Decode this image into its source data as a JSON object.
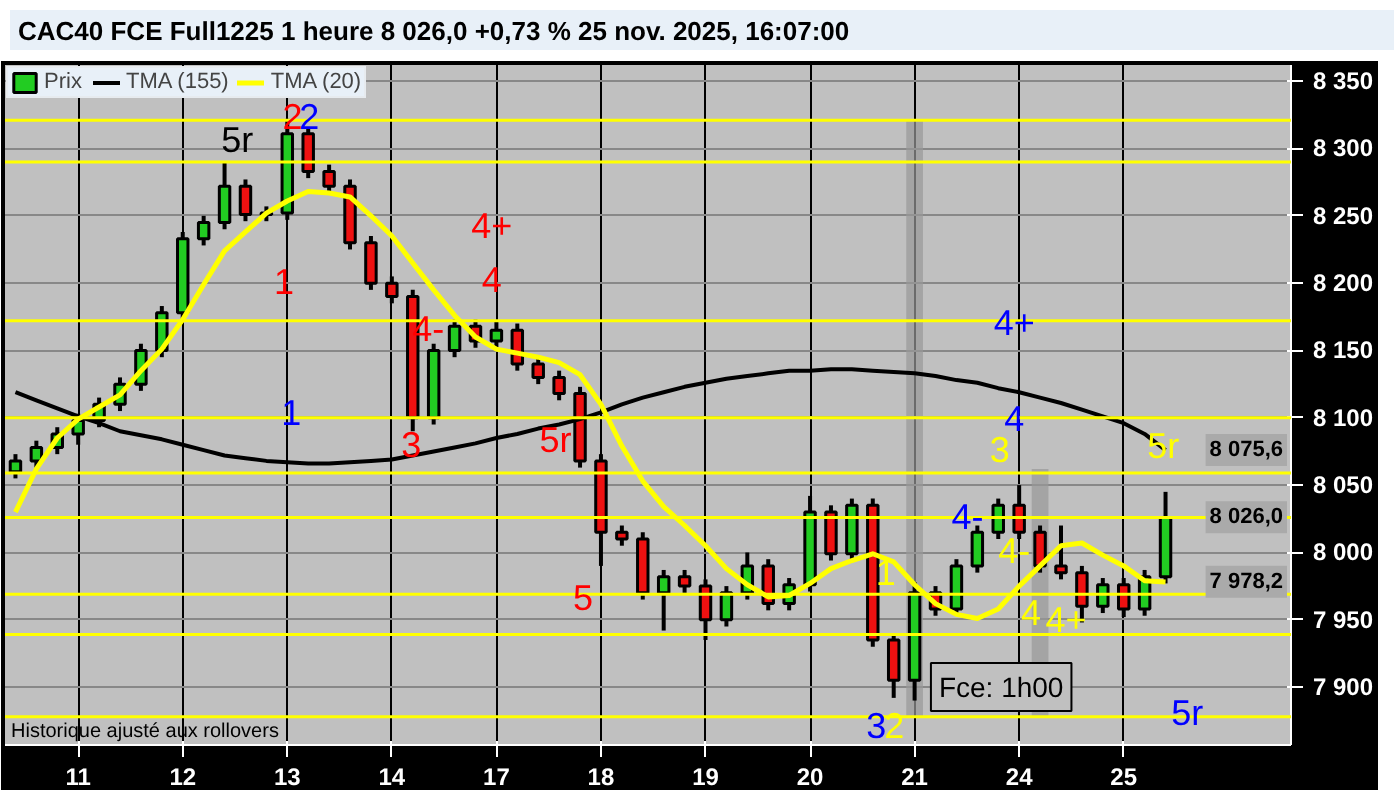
{
  "chart_data": {
    "type": "candlestick",
    "title": "CAC40 FCE Full1225 1 heure 8 026,0 +0,73 % 25 nov. 2025, 16:07:00",
    "categories": [
      null,
      null,
      null,
      "11",
      null,
      null,
      null,
      null,
      "12",
      null,
      null,
      null,
      null,
      "13",
      null,
      null,
      null,
      null,
      "14",
      null,
      null,
      null,
      null,
      "17",
      null,
      null,
      null,
      null,
      "18",
      null,
      null,
      null,
      null,
      "19",
      null,
      null,
      null,
      null,
      "20",
      null,
      null,
      null,
      null,
      "21",
      null,
      null,
      null,
      null,
      "24",
      null,
      null,
      null,
      null,
      "25",
      null,
      null
    ],
    "ylim": [
      7857,
      8362
    ],
    "yticks": [
      {
        "value": 7900,
        "label": "7 900"
      },
      {
        "value": 7950,
        "label": "7 950"
      },
      {
        "value": 8000,
        "label": "8 000"
      },
      {
        "value": 8050,
        "label": "8 050"
      },
      {
        "value": 8100,
        "label": "8 100"
      },
      {
        "value": 8150,
        "label": "8 150"
      },
      {
        "value": 8200,
        "label": "8 200"
      },
      {
        "value": 8250,
        "label": "8 250"
      },
      {
        "value": 8300,
        "label": "8 300"
      },
      {
        "value": 8350,
        "label": "8 350"
      }
    ],
    "grid": true,
    "legend": "top left",
    "series": [
      {
        "type": "bar",
        "color": "#999999",
        "base": [
          null,
          null,
          null,
          null,
          null,
          null,
          null,
          null,
          null,
          null,
          null,
          null,
          null,
          null,
          null,
          null,
          null,
          null,
          null,
          null,
          null,
          null,
          null,
          null,
          null,
          null,
          null,
          null,
          null,
          null,
          null,
          null,
          null,
          null,
          null,
          null,
          null,
          null,
          null,
          null,
          null,
          null,
          null,
          7878,
          null,
          null,
          null,
          null,
          null,
          7878,
          null,
          null,
          null,
          null,
          null,
          null
        ],
        "values": [
          null,
          null,
          null,
          null,
          null,
          null,
          null,
          null,
          null,
          null,
          null,
          null,
          null,
          null,
          null,
          null,
          null,
          null,
          null,
          null,
          null,
          null,
          null,
          null,
          null,
          null,
          null,
          null,
          null,
          null,
          null,
          null,
          null,
          null,
          null,
          null,
          null,
          null,
          null,
          null,
          null,
          null,
          null,
          443,
          null,
          null,
          null,
          null,
          null,
          184,
          null,
          null,
          null,
          null,
          null,
          null
        ]
      },
      {
        "name": "Prix",
        "ohlc": [
          [
            8060,
            8073,
            8055,
            8068
          ],
          [
            8068,
            8083,
            8063,
            8078
          ],
          [
            8078,
            8093,
            8073,
            8088
          ],
          [
            8088,
            8103,
            8080,
            8098
          ],
          [
            8098,
            8115,
            8093,
            8110
          ],
          [
            8110,
            8130,
            8105,
            8125
          ],
          [
            8125,
            8155,
            8120,
            8150
          ],
          [
            8150,
            8183,
            8145,
            8178
          ],
          [
            8178,
            8238,
            8173,
            8233
          ],
          [
            8233,
            8250,
            8228,
            8245
          ],
          [
            8245,
            8290,
            8240,
            8272
          ],
          [
            8272,
            8277,
            8246,
            8251
          ],
          [
            8251,
            8257,
            8246,
            8252
          ],
          [
            8252,
            8322,
            8247,
            8311
          ],
          [
            8311,
            8316,
            8278,
            8283
          ],
          [
            8283,
            8288,
            8267,
            8272
          ],
          [
            8272,
            8277,
            8225,
            8230
          ],
          [
            8230,
            8235,
            8195,
            8200
          ],
          [
            8200,
            8205,
            8185,
            8190
          ],
          [
            8190,
            8195,
            8090,
            8100
          ],
          [
            8100,
            8155,
            8095,
            8150
          ],
          [
            8150,
            8173,
            8145,
            8168
          ],
          [
            8168,
            8173,
            8152,
            8157
          ],
          [
            8157,
            8172,
            8152,
            8165
          ],
          [
            8165,
            8170,
            8135,
            8140
          ],
          [
            8140,
            8145,
            8125,
            8130
          ],
          [
            8130,
            8135,
            8113,
            8118
          ],
          [
            8118,
            8123,
            8063,
            8068
          ],
          [
            8068,
            8073,
            7990,
            8015
          ],
          [
            8015,
            8020,
            8005,
            8010
          ],
          [
            8010,
            8015,
            7965,
            7970
          ],
          [
            7970,
            7987,
            7942,
            7982
          ],
          [
            7982,
            7987,
            7970,
            7975
          ],
          [
            7975,
            7980,
            7935,
            7950
          ],
          [
            7950,
            7975,
            7945,
            7970
          ],
          [
            7970,
            8000,
            7965,
            7990
          ],
          [
            7990,
            7995,
            7957,
            7962
          ],
          [
            7962,
            7981,
            7957,
            7976
          ],
          [
            7976,
            8042,
            7971,
            8030
          ],
          [
            8030,
            8035,
            7994,
            7999
          ],
          [
            7999,
            8040,
            7994,
            8035
          ],
          [
            8035,
            8040,
            7930,
            7935
          ],
          [
            7935,
            7940,
            7892,
            7905
          ],
          [
            7905,
            7978,
            7890,
            7970
          ],
          [
            7970,
            7975,
            7953,
            7958
          ],
          [
            7958,
            7995,
            7953,
            7990
          ],
          [
            7990,
            8020,
            7985,
            8015
          ],
          [
            8015,
            8040,
            8010,
            8035
          ],
          [
            8035,
            8050,
            8010,
            8015
          ],
          [
            8015,
            8020,
            7985,
            7990
          ],
          [
            7990,
            8020,
            7980,
            7985
          ],
          [
            7985,
            7990,
            7948,
            7960
          ],
          [
            7960,
            7981,
            7955,
            7976
          ],
          [
            7976,
            7981,
            7952,
            7958
          ],
          [
            7958,
            7987,
            7953,
            7982
          ],
          [
            7982,
            8045,
            7977,
            8026
          ]
        ]
      },
      {
        "type": "line",
        "name": "TMA (155)",
        "color": "#000000",
        "values": [
          8119,
          8113,
          8107,
          8101,
          8096,
          8090,
          8087,
          8084,
          8080,
          8076,
          8072,
          8070,
          8068,
          8067,
          8066,
          8066,
          8067,
          8068,
          8069,
          8072,
          8075,
          8078,
          8081,
          8085,
          8088,
          8092,
          8095,
          8099,
          8104,
          8110,
          8115,
          8119,
          8123,
          8126,
          8129,
          8131,
          8133,
          8135,
          8135,
          8136,
          8136,
          8135,
          8134,
          8133,
          8131,
          8128,
          8126,
          8122,
          8119,
          8115,
          8111,
          8106,
          8101,
          8096,
          8088,
          8076
        ]
      },
      {
        "type": "line",
        "name": "TMA (20)",
        "color": "#ffff00",
        "values": [
          8030,
          8062,
          8085,
          8099,
          8108,
          8117,
          8135,
          8151,
          8173,
          8199,
          8224,
          8238,
          8252,
          8261,
          8268,
          8267,
          8264,
          8250,
          8235,
          8215,
          8195,
          8176,
          8160,
          8151,
          8148,
          8145,
          8141,
          8132,
          8110,
          8079,
          8053,
          8034,
          8020,
          8005,
          7988,
          7976,
          7967,
          7968,
          7977,
          7988,
          7994,
          7999,
          7993,
          7976,
          7962,
          7954,
          7951,
          7958,
          7975,
          7990,
          8005,
          8007,
          7998,
          7990,
          7979,
          7978
        ]
      }
    ],
    "ref_lines": [
      {
        "axis": "y",
        "value": 8321,
        "color": "#ffff00"
      },
      {
        "axis": "y",
        "value": 8290,
        "color": "#ffff00"
      },
      {
        "axis": "y",
        "value": 8172,
        "color": "#ffff00"
      },
      {
        "axis": "y",
        "value": 8100,
        "color": "#ffff00"
      },
      {
        "axis": "y",
        "value": 8059,
        "color": "#ffff00"
      },
      {
        "axis": "y",
        "value": 8026,
        "color": "#ffff00"
      },
      {
        "axis": "y",
        "value": 7969,
        "color": "#ffff00"
      },
      {
        "axis": "y",
        "value": 7939,
        "color": "#ffff00"
      },
      {
        "axis": "y",
        "value": 7878,
        "color": "#ffff00"
      }
    ],
    "annotations": [
      "2",
      "2",
      "5r",
      "1",
      "4+",
      "4",
      "4-",
      "1",
      "3",
      "5r",
      "5",
      "4+",
      "4",
      "3",
      "4-",
      "4-",
      "4",
      "4+",
      "1",
      "3",
      "2",
      "5r",
      "5r",
      "Historique ajusté aux rollovers",
      "Fce: 1h00",
      "8 075,6",
      "8 026,0",
      "7 978,2"
    ]
  }
}
